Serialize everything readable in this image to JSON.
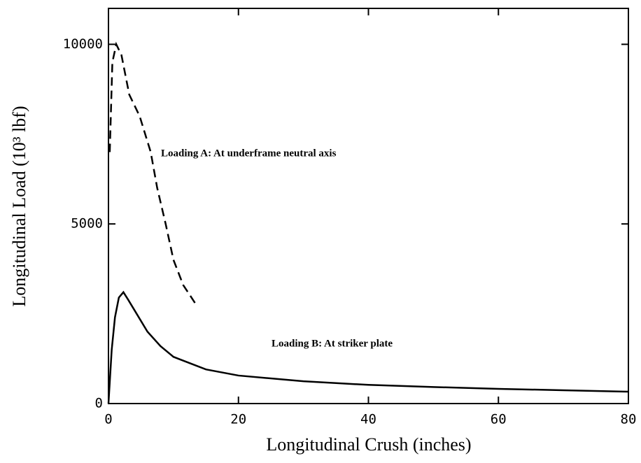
{
  "chart_data": {
    "type": "line",
    "xlabel": "Longitudinal Crush (inches)",
    "ylabel": "Longitudinal Load (10³ lbf)",
    "annotations": [
      "Loading A: At underframe neutral axis",
      "Loading B: At striker plate"
    ],
    "xlim": [
      0,
      80
    ],
    "ylim": [
      0,
      11000
    ],
    "xticks": [
      0,
      20,
      40,
      60,
      80
    ],
    "yticks": [
      0,
      5000,
      10000
    ],
    "grid": false,
    "series": [
      {
        "name": "Loading A",
        "color": "#000000",
        "dash": true,
        "x": [
          0.2,
          0.6,
          1.2,
          2,
          3.2,
          4.8,
          6.5,
          7.5,
          8.8,
          10,
          11.5,
          13.5
        ],
        "values": [
          7000,
          9500,
          10000,
          9700,
          8600,
          8000,
          7000,
          6000,
          5000,
          4000,
          3300,
          2750
        ]
      },
      {
        "name": "Loading B",
        "color": "#000000",
        "dash": false,
        "x": [
          0,
          0.5,
          1,
          1.6,
          2.3,
          3,
          4,
          6,
          8,
          10,
          15,
          20,
          30,
          40,
          50,
          60,
          70,
          80
        ],
        "values": [
          0,
          1500,
          2400,
          2950,
          3100,
          2900,
          2600,
          2000,
          1600,
          1300,
          950,
          780,
          620,
          520,
          460,
          410,
          370,
          330
        ]
      }
    ]
  }
}
